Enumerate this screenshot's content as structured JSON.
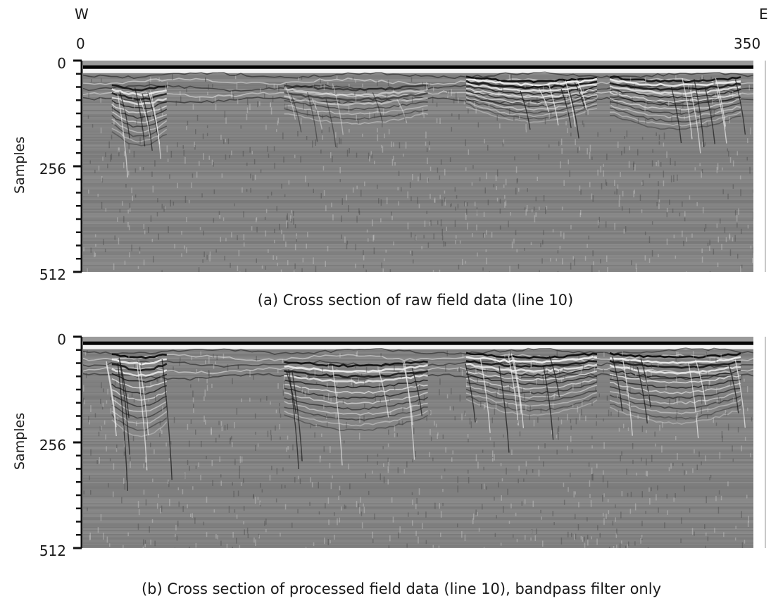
{
  "direction": {
    "west": "W",
    "east": "E"
  },
  "chart_data": [
    {
      "type": "heatmap",
      "description_kind": "radargram",
      "title": "(a) Cross section of raw field data (line 10)",
      "ylabel": "Samples",
      "xlim": [
        0,
        350
      ],
      "ylim": [
        512,
        0
      ],
      "x_ticks": [
        "0",
        "350"
      ],
      "y_ticks": [
        "0",
        "256",
        "512"
      ],
      "colormap": "grayscale",
      "direct_wave_sample": 15,
      "features": [
        {
          "x": [
            15,
            45
          ],
          "depth_samples": [
            60,
            280
          ],
          "intensity": 0.9
        },
        {
          "x": [
            105,
            180
          ],
          "depth_samples": [
            60,
            200
          ],
          "intensity": 0.6
        },
        {
          "x": [
            200,
            270
          ],
          "depth_samples": [
            40,
            180
          ],
          "intensity": 1.0
        },
        {
          "x": [
            275,
            345
          ],
          "depth_samples": [
            40,
            220
          ],
          "intensity": 0.95
        }
      ]
    },
    {
      "type": "heatmap",
      "description_kind": "radargram",
      "title": "(b) Cross section of processed field data (line 10), bandpass filter only",
      "ylabel": "Samples",
      "xlim": [
        0,
        350
      ],
      "ylim": [
        512,
        0
      ],
      "y_ticks": [
        "0",
        "256",
        "512"
      ],
      "colormap": "grayscale",
      "direct_wave_sample": 15,
      "features": [
        {
          "x": [
            15,
            45
          ],
          "depth_samples": [
            40,
            360
          ],
          "intensity": 1.0
        },
        {
          "x": [
            105,
            180
          ],
          "depth_samples": [
            60,
            320
          ],
          "intensity": 0.95
        },
        {
          "x": [
            200,
            270
          ],
          "depth_samples": [
            40,
            260
          ],
          "intensity": 1.0
        },
        {
          "x": [
            275,
            345
          ],
          "depth_samples": [
            40,
            300
          ],
          "intensity": 1.0
        }
      ]
    }
  ]
}
